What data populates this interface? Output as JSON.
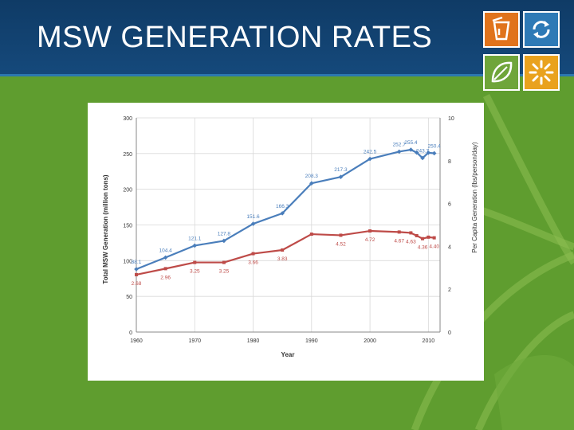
{
  "header": {
    "title": "MSW GENERATION RATES",
    "colors": {
      "band": "#15497b",
      "background": "#5f9d2f"
    }
  },
  "logo": [
    {
      "icon": "trash-bin-icon",
      "color": "#e0731c"
    },
    {
      "icon": "recycle-arrows-icon",
      "color": "#2e7ab6"
    },
    {
      "icon": "leaf-icon",
      "color": "#6fa53a"
    },
    {
      "icon": "sun-icon",
      "color": "#e9a21e"
    }
  ],
  "chart_data": {
    "type": "line",
    "title": "",
    "xlabel": "Year",
    "ylabel": "Total MSW Generation (million tons)",
    "y2label": "Per Capita Generation (lbs/person/day)",
    "xlim": [
      1960,
      2012
    ],
    "ylim": [
      0,
      300
    ],
    "y2lim": [
      0,
      10
    ],
    "x_ticks": [
      1960,
      1970,
      1980,
      1990,
      2000,
      2010
    ],
    "y_ticks": [
      0,
      50,
      100,
      150,
      200,
      250,
      300
    ],
    "y2_ticks": [
      0,
      2,
      4,
      6,
      8,
      10
    ],
    "grid": true,
    "series": [
      {
        "name": "",
        "axis": "left",
        "color": "#4a7ebb",
        "x": [
          1960,
          1965,
          1970,
          1975,
          1980,
          1985,
          1990,
          1995,
          2000,
          2005,
          2007,
          2008,
          2009,
          2010,
          2011
        ],
        "y": [
          88.1,
          104.4,
          121.1,
          127.8,
          151.6,
          166.3,
          208.3,
          217.3,
          242.5,
          252.7,
          255.4,
          251.4,
          243.7,
          251.1,
          250.4
        ],
        "labels": [
          "88.1",
          "104.4",
          "121.1",
          "127.8",
          "151.6",
          "166.3",
          "208.3",
          "217.3",
          "242.5",
          "252.7",
          "255.4",
          "",
          "243.7",
          "",
          "250.4"
        ]
      },
      {
        "name": "",
        "axis": "right",
        "color": "#be4b48",
        "x": [
          1960,
          1965,
          1970,
          1975,
          1980,
          1985,
          1990,
          1995,
          2000,
          2005,
          2007,
          2008,
          2009,
          2010,
          2011
        ],
        "y": [
          2.68,
          2.96,
          3.25,
          3.25,
          3.66,
          3.83,
          4.57,
          4.52,
          4.72,
          4.67,
          4.63,
          4.5,
          4.36,
          4.43,
          4.4
        ],
        "labels": [
          "2.68",
          "2.96",
          "3.25",
          "3.25",
          "3.66",
          "3.83",
          "",
          "4.52",
          "4.72",
          "4.67",
          "4.63",
          "",
          "4.36",
          "",
          "4.40"
        ]
      }
    ]
  }
}
